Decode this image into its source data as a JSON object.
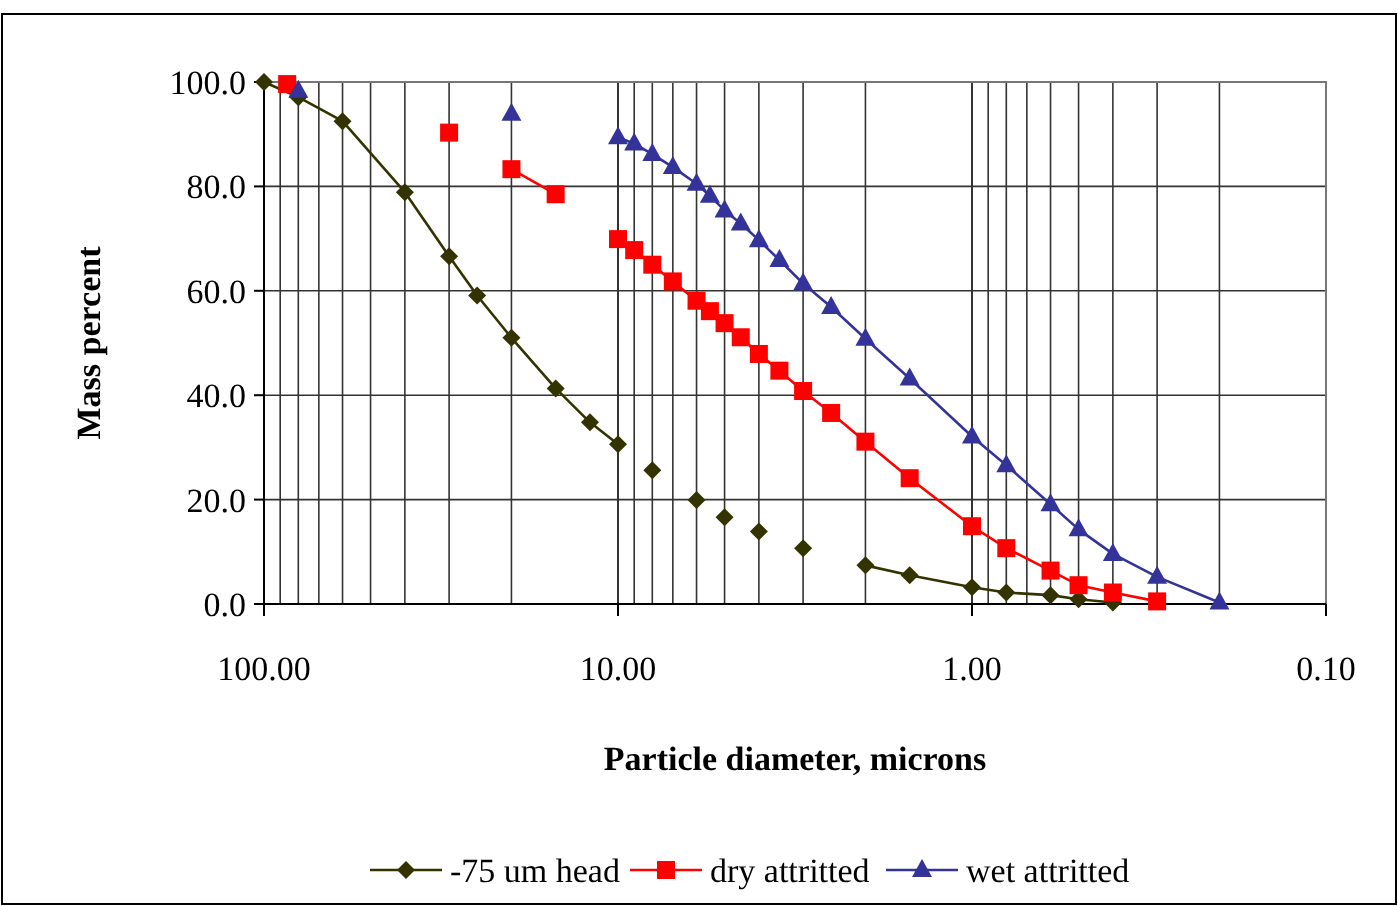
{
  "chart_data": {
    "type": "line",
    "xlabel": "Particle diameter, microns",
    "ylabel": "Mass percent",
    "log": "x",
    "grid": true,
    "legend": "bottom",
    "line_style": "solid",
    "xlim": [
      100,
      0.1
    ],
    "xticks": [
      {
        "value": 100,
        "label": "100.00"
      },
      {
        "value": 10,
        "label": "10.00"
      },
      {
        "value": 1,
        "label": "1.00"
      },
      {
        "value": 0.1,
        "label": "0.10"
      }
    ],
    "ylim": [
      0,
      100
    ],
    "yticks": [
      {
        "value": 0,
        "label": "0.0"
      },
      {
        "value": 20,
        "label": "20.0"
      },
      {
        "value": 40,
        "label": "40.0"
      },
      {
        "value": 60,
        "label": "60.0"
      },
      {
        "value": 80,
        "label": "80.0"
      },
      {
        "value": 100,
        "label": "100.0"
      }
    ],
    "series": [
      {
        "name": "-75 um head",
        "color": "#333300",
        "marker": "diamond",
        "x": [
          100,
          80,
          60,
          40,
          30,
          25,
          20,
          15,
          12,
          10,
          9,
          8,
          7,
          6,
          5.5,
          5,
          4.5,
          4,
          3.5,
          3,
          2.5,
          2,
          1.5,
          1,
          0.8,
          0.6,
          0.5,
          0.4
        ],
        "values": [
          100,
          97.1,
          92.5,
          78.9,
          66.6,
          59.1,
          51.0,
          41.3,
          34.8,
          30.6,
          null,
          25.6,
          null,
          19.9,
          null,
          16.6,
          null,
          13.9,
          null,
          10.7,
          null,
          7.4,
          5.5,
          3.2,
          2.2,
          1.7,
          0.9,
          0.3
        ]
      },
      {
        "name": "dry attritted",
        "color": "#ff0000",
        "marker": "square",
        "x": [
          86,
          50,
          30,
          25,
          20,
          15,
          12,
          10,
          9,
          8,
          7,
          6,
          5.5,
          5,
          4.5,
          4,
          3.5,
          3,
          2.5,
          2,
          1.5,
          1,
          0.8,
          0.6,
          0.5,
          0.4,
          0.3
        ],
        "values": [
          99.6,
          null,
          90.3,
          null,
          83.3,
          78.5,
          null,
          69.9,
          67.8,
          65.0,
          61.8,
          58.1,
          56.1,
          53.8,
          51.1,
          47.9,
          44.7,
          40.8,
          36.6,
          31.1,
          24.1,
          14.9,
          10.7,
          6.4,
          3.6,
          2.2,
          0.5
        ]
      },
      {
        "name": "wet attritted",
        "color": "#333399",
        "marker": "triangle",
        "x": [
          80,
          40,
          20,
          15,
          10,
          9,
          8,
          7,
          6,
          5.5,
          5,
          4.5,
          4,
          3.5,
          3,
          2.5,
          2,
          1.5,
          1,
          0.8,
          0.6,
          0.5,
          0.4,
          0.3,
          0.2
        ],
        "values": [
          98.3,
          null,
          93.9,
          null,
          89.4,
          88.2,
          86.2,
          83.7,
          80.5,
          78.2,
          75.4,
          72.9,
          69.7,
          65.9,
          61.4,
          56.9,
          50.8,
          43.2,
          32.1,
          26.6,
          19.1,
          14.3,
          9.6,
          5.2,
          0.3
        ]
      }
    ]
  }
}
